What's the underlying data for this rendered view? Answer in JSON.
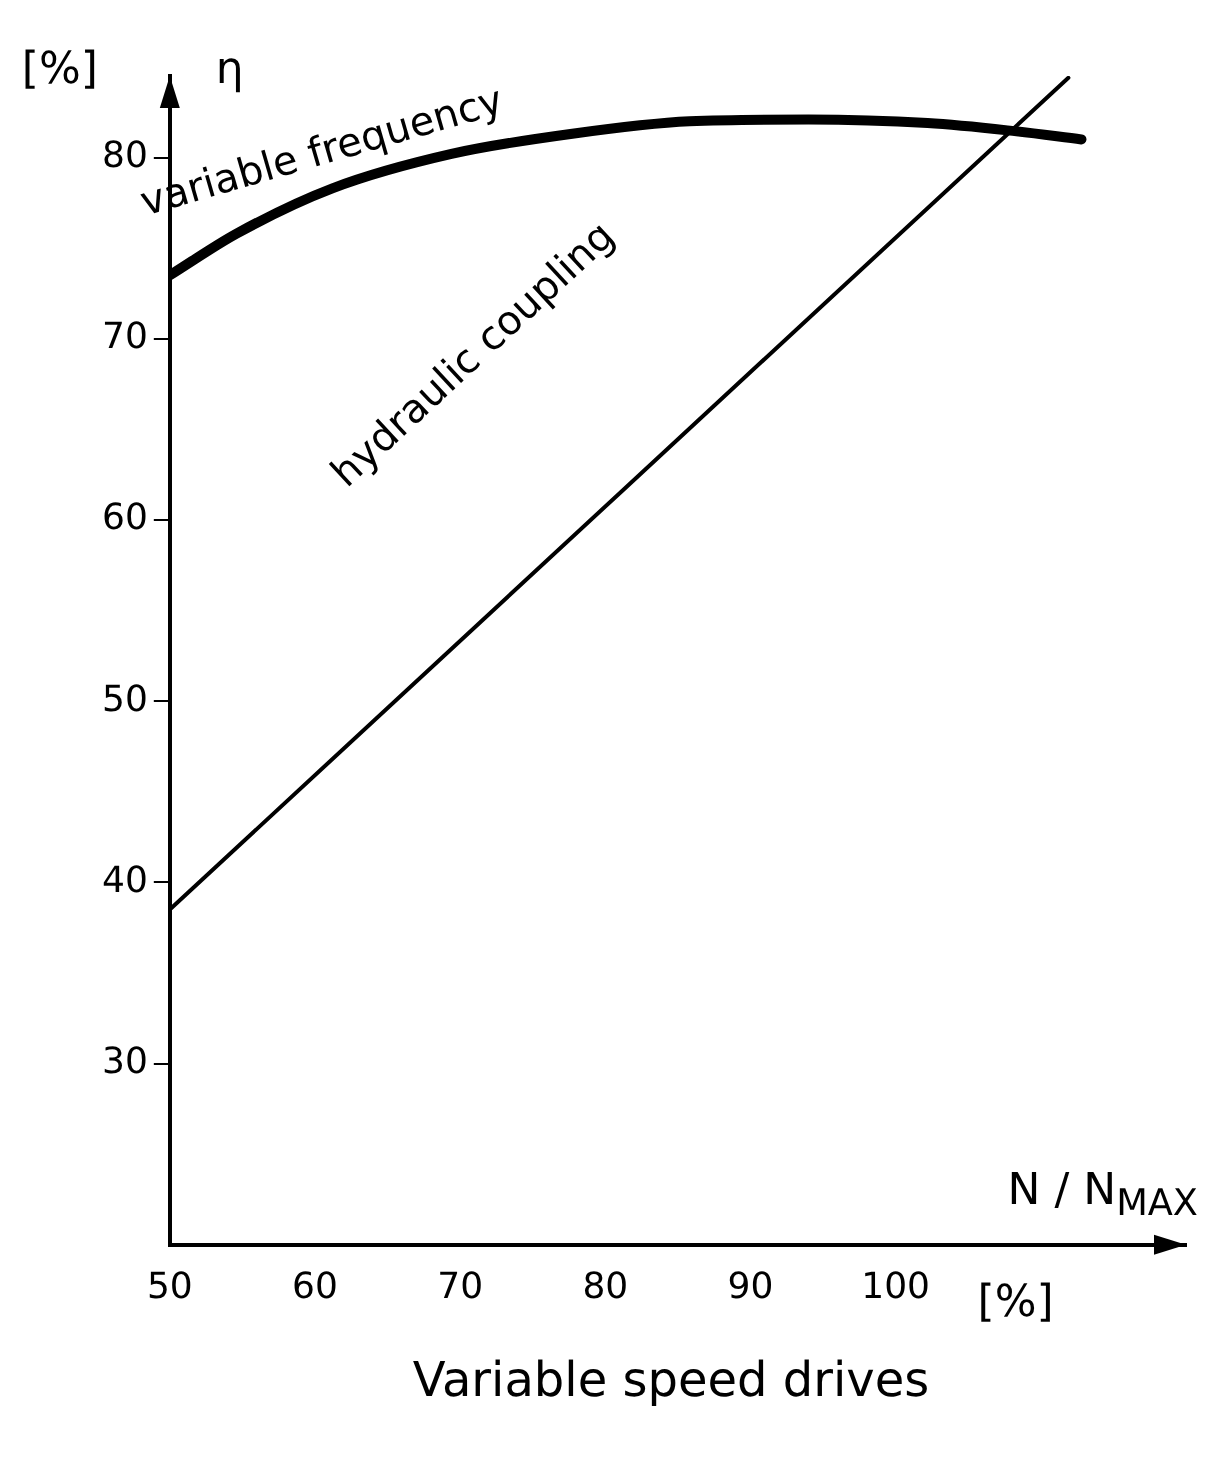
{
  "chart_data": {
    "type": "line",
    "title": "Variable speed drives",
    "xlabel": "N / N$_{MAX}$",
    "ylabel": "[%]",
    "annotations": [
      "η",
      "[%]"
    ],
    "xlim": [
      50,
      120
    ],
    "xticks": [
      50,
      60,
      70,
      80,
      90,
      100
    ],
    "ylim": [
      20,
      84.5
    ],
    "yticks": [
      30,
      40,
      50,
      60,
      70,
      80
    ],
    "grid": false,
    "legend": false,
    "marker": "none",
    "line_style": "solid",
    "series": [
      {
        "name": "variable frequency",
        "color": "#000000",
        "x": [
          50,
          54.6,
          61.2,
          69.4,
          77.6,
          85.8,
          94,
          102.2,
          107.7,
          112.8
        ],
        "values": [
          73.5,
          75.8,
          78.3,
          80.2,
          81.3,
          82.0,
          82.1,
          81.9,
          81.5,
          81.0
        ]
      },
      {
        "name": "hydraulic coupling",
        "color": "#000000",
        "x": [
          50,
          111.9
        ],
        "values": [
          38.5,
          84.4
        ]
      }
    ]
  }
}
